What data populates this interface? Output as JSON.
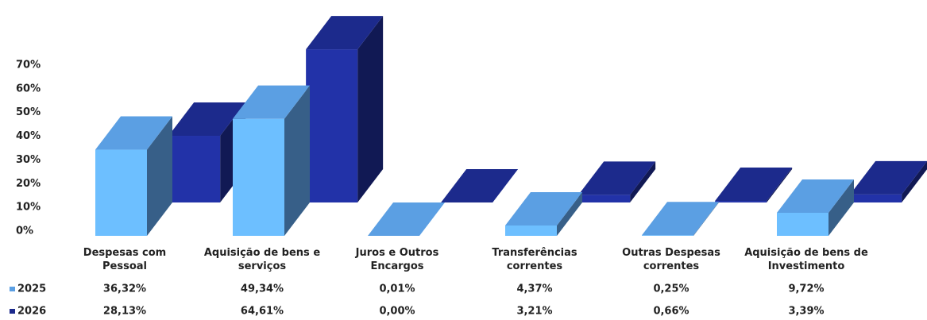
{
  "chart_data": {
    "type": "bar3d",
    "categories": [
      "Despesas com Pessoal",
      "Aquisição de bens e serviços",
      "Juros e Outros Encargos",
      "Transferências correntes",
      "Outras Despesas correntes",
      "Aquisição de bens de Investimento"
    ],
    "series": [
      {
        "name": "2025",
        "color": "#5b9fe3",
        "values": [
          36.32,
          49.34,
          0.01,
          4.37,
          0.25,
          9.72
        ],
        "value_labels": [
          "36,32%",
          "49,34%",
          "0,01%",
          "4,37%",
          "0,25%",
          "9,72%"
        ]
      },
      {
        "name": "2026",
        "color": "#1c2a8c",
        "values": [
          28.13,
          64.61,
          0.0,
          3.21,
          0.66,
          3.39
        ],
        "value_labels": [
          "28,13%",
          "64,61%",
          "0,00%",
          "3,21%",
          "0,66%",
          "3,39%"
        ]
      }
    ],
    "ylim": [
      0,
      70
    ],
    "yticks": [
      {
        "value": 0,
        "label": "0%"
      },
      {
        "value": 10,
        "label": "10%"
      },
      {
        "value": 20,
        "label": "20%"
      },
      {
        "value": 30,
        "label": "30%"
      },
      {
        "value": 40,
        "label": "40%"
      },
      {
        "value": 50,
        "label": "50%"
      },
      {
        "value": 60,
        "label": "60%"
      },
      {
        "value": 70,
        "label": "70%"
      }
    ]
  }
}
